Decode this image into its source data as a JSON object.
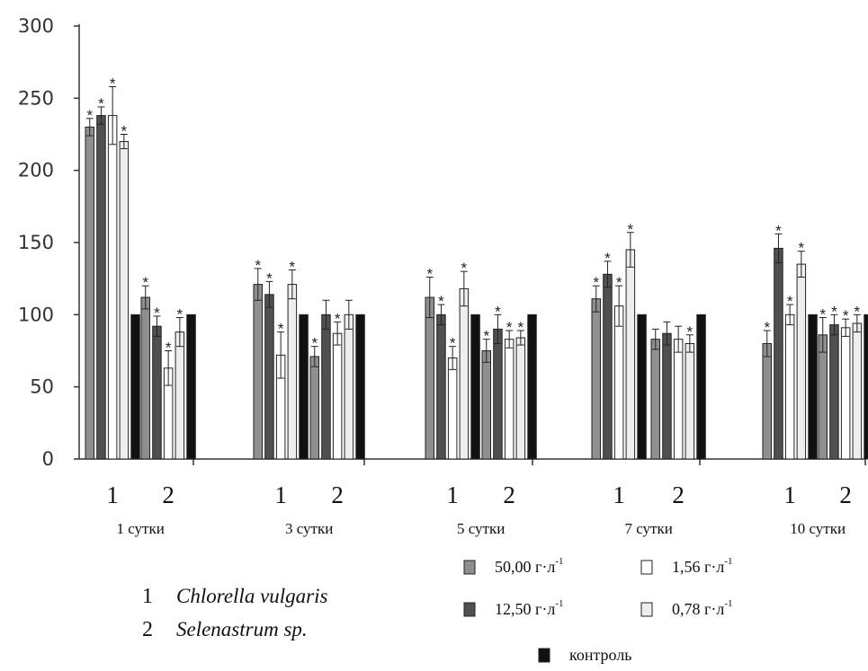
{
  "chart_data": {
    "type": "bar",
    "ylim": [
      0,
      300
    ],
    "yticks": [
      0,
      50,
      100,
      150,
      200,
      250,
      300
    ],
    "grid": false,
    "groups": [
      {
        "label": "1 сутки",
        "clusters": [
          {
            "label": "1",
            "values": [
              230,
              238,
              238,
              220,
              100
            ],
            "err": [
              6,
              6,
              20,
              5,
              0
            ],
            "star": [
              true,
              true,
              true,
              true,
              false
            ]
          },
          {
            "label": "2",
            "values": [
              112,
              92,
              63,
              88,
              100
            ],
            "err": [
              8,
              7,
              12,
              10,
              0
            ],
            "star": [
              true,
              true,
              true,
              true,
              false
            ]
          }
        ]
      },
      {
        "label": "3 сутки",
        "clusters": [
          {
            "label": "1",
            "values": [
              121,
              114,
              72,
              121,
              100
            ],
            "err": [
              11,
              9,
              16,
              10,
              0
            ],
            "star": [
              true,
              true,
              true,
              true,
              false
            ]
          },
          {
            "label": "2",
            "values": [
              71,
              100,
              87,
              100,
              100
            ],
            "err": [
              7,
              10,
              8,
              10,
              0
            ],
            "star": [
              true,
              false,
              true,
              false,
              false
            ]
          }
        ]
      },
      {
        "label": "5 сутки",
        "clusters": [
          {
            "label": "1",
            "values": [
              112,
              100,
              70,
              118,
              100
            ],
            "err": [
              14,
              7,
              8,
              12,
              0
            ],
            "star": [
              true,
              true,
              true,
              true,
              false
            ]
          },
          {
            "label": "2",
            "values": [
              75,
              90,
              83,
              84,
              100
            ],
            "err": [
              8,
              10,
              6,
              5,
              0
            ],
            "star": [
              true,
              true,
              true,
              true,
              false
            ]
          }
        ]
      },
      {
        "label": "7 сутки",
        "clusters": [
          {
            "label": "1",
            "values": [
              111,
              128,
              106,
              145,
              100
            ],
            "err": [
              9,
              9,
              14,
              12,
              0
            ],
            "star": [
              true,
              true,
              true,
              true,
              false
            ]
          },
          {
            "label": "2",
            "values": [
              83,
              87,
              83,
              80,
              100
            ],
            "err": [
              7,
              8,
              9,
              6,
              0
            ],
            "star": [
              false,
              false,
              false,
              true,
              false
            ]
          }
        ]
      },
      {
        "label": "10 сутки",
        "clusters": [
          {
            "label": "1",
            "values": [
              80,
              146,
              100,
              135,
              100
            ],
            "err": [
              9,
              10,
              7,
              9,
              0
            ],
            "star": [
              true,
              true,
              true,
              true,
              false
            ]
          },
          {
            "label": "2",
            "values": [
              86,
              93,
              91,
              94,
              100
            ],
            "err": [
              12,
              7,
              6,
              6,
              0
            ],
            "star": [
              true,
              true,
              true,
              true,
              false
            ]
          }
        ]
      }
    ],
    "series": [
      {
        "name": "50,00 г·л",
        "sup": "-1",
        "color": "#8f8f8f"
      },
      {
        "name": "12,50 г·л",
        "sup": "-1",
        "color": "#505050"
      },
      {
        "name": "1,56 г·л",
        "sup": "-1",
        "color": "#ffffff"
      },
      {
        "name": "0,78 г·л",
        "sup": "-1",
        "color": "#eeeeee"
      },
      {
        "name": "контроль",
        "sup": "",
        "color": "#111111"
      }
    ],
    "significance_marker": "*",
    "species": [
      {
        "num": "1",
        "name": "Chlorella vulgaris"
      },
      {
        "num": "2",
        "name": "Selenastrum sp."
      }
    ]
  }
}
